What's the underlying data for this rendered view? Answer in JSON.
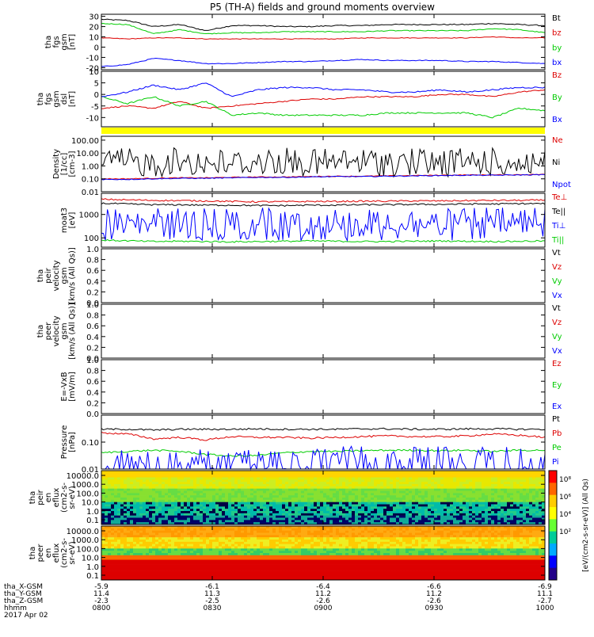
{
  "title": "P5 (TH-A) fields and ground moments overview",
  "colors": {
    "black": "#000000",
    "red": "#dd0000",
    "green": "#00cc00",
    "blue": "#0000ff",
    "yellow": "#ffff00",
    "spec_bg": "#ff3300"
  },
  "chart_data": [
    {
      "type": "line",
      "ylabel": [
        "tha",
        "fgs",
        "gsm",
        "[nT]"
      ],
      "ylim": [
        -22,
        32
      ],
      "yticks": [
        "30",
        "20",
        "10",
        "0",
        "-10",
        "-20"
      ],
      "ytick_values": [
        30,
        20,
        10,
        0,
        -10,
        -20
      ],
      "series": [
        {
          "name": "Bt",
          "color": "black",
          "noise": 0.5,
          "values": [
            27,
            26,
            20,
            22,
            16,
            21,
            21,
            20,
            20,
            21,
            21,
            22,
            22,
            22,
            22,
            23,
            22,
            21
          ]
        },
        {
          "name": "bz",
          "color": "red",
          "noise": 0.3,
          "values": [
            9,
            8,
            9,
            9,
            8,
            8,
            8,
            8,
            8,
            8,
            9,
            9,
            9,
            9,
            9,
            10,
            9,
            9
          ]
        },
        {
          "name": "by",
          "color": "green",
          "noise": 0.4,
          "values": [
            23,
            22,
            13,
            17,
            13,
            14,
            14,
            15,
            15,
            15,
            15,
            16,
            16,
            16,
            16,
            18,
            17,
            14
          ]
        },
        {
          "name": "bx",
          "color": "blue",
          "noise": 0.4,
          "values": [
            -19,
            -17,
            -11,
            -13,
            -16,
            -16,
            -15,
            -14,
            -14,
            -13,
            -12,
            -13,
            -13,
            -13,
            -14,
            -14,
            -15,
            -16
          ]
        }
      ]
    },
    {
      "type": "line",
      "ylabel": [
        "tha",
        "fgs",
        "gsm",
        "dsl",
        "[nT]"
      ],
      "ylim": [
        -14,
        10
      ],
      "yticks": [
        "10",
        "5",
        "0",
        "-5",
        "-10"
      ],
      "ytick_values": [
        10,
        5,
        0,
        -5,
        -10
      ],
      "series": [
        {
          "name": "Bz",
          "color": "red",
          "noise": 0.25,
          "values": [
            -6,
            -5,
            -6,
            -3,
            -6,
            -5,
            -4,
            -3,
            -2,
            -2,
            -1,
            -1,
            -1,
            0,
            0,
            -1,
            1,
            2
          ]
        },
        {
          "name": "By",
          "color": "green",
          "noise": 0.3,
          "values": [
            -1,
            -4,
            -1,
            -5,
            -3,
            -9,
            -8,
            -9,
            -9,
            -9,
            -9,
            -8,
            -8,
            -8,
            -8,
            -10,
            -6,
            -7
          ]
        },
        {
          "name": "Bx",
          "color": "blue",
          "noise": 0.3,
          "values": [
            -1,
            1,
            4,
            2,
            5,
            -1,
            2,
            3,
            3,
            2,
            2,
            1,
            1,
            2,
            1,
            2,
            3,
            3
          ]
        }
      ]
    },
    {
      "type": "line",
      "scale": "log",
      "ylabel": [
        "Density",
        "[1/cc]",
        "[cm-3]"
      ],
      "ylim": [
        0.01,
        200
      ],
      "yticks": [
        "100.00",
        "10.00",
        "1.00",
        "0.10",
        "0.01"
      ],
      "ytick_values": [
        100,
        10,
        1,
        0.1,
        0.01
      ],
      "series": [
        {
          "name": "Ne",
          "color": "red",
          "values": [
            0.1,
            0.1,
            0.11,
            0.12,
            0.12,
            0.13,
            0.14,
            0.14,
            0.15,
            0.16,
            0.16,
            0.17,
            0.18,
            0.19,
            0.2,
            0.2,
            0.21,
            0.22
          ]
        },
        {
          "name": "Ni",
          "color": "black",
          "spiky": true,
          "values": [
            20,
            25,
            18,
            30,
            22,
            20,
            25,
            28,
            20,
            24,
            26,
            22,
            25,
            20,
            28,
            24,
            22,
            26
          ]
        },
        {
          "name": "Npot",
          "color": "blue",
          "values": [
            0.09,
            0.09,
            0.1,
            0.11,
            0.11,
            0.12,
            0.13,
            0.13,
            0.14,
            0.15,
            0.15,
            0.16,
            0.17,
            0.18,
            0.19,
            0.19,
            0.2,
            0.21
          ]
        }
      ]
    },
    {
      "type": "line",
      "scale": "log",
      "ylabel": [
        "moat3",
        "[eV]"
      ],
      "ylim": [
        40,
        8000
      ],
      "yticks": [
        "1000",
        "100"
      ],
      "ytick_values": [
        1000,
        100
      ],
      "series": [
        {
          "name": "Te⊥",
          "color": "red",
          "values": [
            4500,
            4200,
            4000,
            3900,
            3800,
            3600,
            3500,
            3500,
            3600,
            3600,
            3700,
            3700,
            3800,
            3800,
            3900,
            4000,
            4000,
            4100
          ]
        },
        {
          "name": "Te||",
          "color": "black",
          "values": [
            3000,
            2800,
            2600,
            2600,
            2500,
            2500,
            2400,
            2400,
            2500,
            2500,
            2600,
            2600,
            2700,
            2700,
            2800,
            2800,
            2900,
            2900
          ]
        },
        {
          "name": "Ti⊥",
          "color": "blue",
          "spiky": true,
          "values": [
            2000,
            1800,
            1900,
            2000,
            1800,
            1900,
            2000,
            1800,
            1900,
            2000,
            1800,
            1900,
            2000,
            1800,
            1900,
            2000,
            1900,
            1900
          ]
        },
        {
          "name": "Ti||",
          "color": "green",
          "values": [
            80,
            75,
            70,
            72,
            70,
            68,
            70,
            72,
            74,
            72,
            70,
            70,
            72,
            74,
            72,
            70,
            72,
            74
          ]
        }
      ]
    },
    {
      "type": "line",
      "ylabel": [
        "tha",
        "peir",
        "velocity",
        "gsm",
        "[km/s (All Qs)]"
      ],
      "ylim": [
        0,
        1
      ],
      "yticks": [
        "1.0",
        "0.8",
        "0.6",
        "0.4",
        "0.2",
        "0.0"
      ],
      "ytick_values": [
        1,
        0.8,
        0.6,
        0.4,
        0.2,
        0
      ],
      "series": [
        {
          "name": "Vt",
          "color": "black",
          "values": []
        },
        {
          "name": "Vz",
          "color": "red",
          "values": []
        },
        {
          "name": "Vy",
          "color": "green",
          "values": []
        },
        {
          "name": "Vx",
          "color": "blue",
          "values": []
        }
      ]
    },
    {
      "type": "line",
      "ylabel": [
        "tha",
        "peer",
        "velocity",
        "gsm",
        "[km/s (All Qs)]"
      ],
      "ylim": [
        0,
        1
      ],
      "yticks": [
        "1.0",
        "0.8",
        "0.6",
        "0.4",
        "0.2",
        "0.0"
      ],
      "ytick_values": [
        1,
        0.8,
        0.6,
        0.4,
        0.2,
        0
      ],
      "series": [
        {
          "name": "Vt",
          "color": "black",
          "values": []
        },
        {
          "name": "Vz",
          "color": "red",
          "values": []
        },
        {
          "name": "Vy",
          "color": "green",
          "values": []
        },
        {
          "name": "Vx",
          "color": "blue",
          "values": []
        }
      ]
    },
    {
      "type": "line",
      "ylabel": [
        "E=-VxB",
        "[mV/m]"
      ],
      "ylim": [
        0,
        1
      ],
      "yticks": [
        "1.0",
        "0.8",
        "0.6",
        "0.4",
        "0.2",
        "0.0"
      ],
      "ytick_values": [
        1,
        0.8,
        0.6,
        0.4,
        0.2,
        0
      ],
      "series": [
        {
          "name": "Ez",
          "color": "red",
          "values": []
        },
        {
          "name": "Ey",
          "color": "green",
          "values": []
        },
        {
          "name": "Ex",
          "color": "blue",
          "values": []
        }
      ]
    },
    {
      "type": "line",
      "scale": "log",
      "ylabel": [
        "Pressure",
        "[nPa]"
      ],
      "ylim": [
        0.01,
        1
      ],
      "yticks": [
        "0.10",
        "0.01"
      ],
      "ytick_values": [
        0.1,
        0.01
      ],
      "series": [
        {
          "name": "Pt",
          "color": "black",
          "values": [
            0.3,
            0.3,
            0.28,
            0.3,
            0.3,
            0.3,
            0.31,
            0.3,
            0.3,
            0.3,
            0.31,
            0.31,
            0.3,
            0.3,
            0.31,
            0.31,
            0.3,
            0.3
          ]
        },
        {
          "name": "Pb",
          "color": "red",
          "values": [
            0.22,
            0.2,
            0.13,
            0.15,
            0.12,
            0.16,
            0.15,
            0.15,
            0.14,
            0.15,
            0.16,
            0.17,
            0.16,
            0.16,
            0.17,
            0.2,
            0.18,
            0.15
          ]
        },
        {
          "name": "Pe",
          "color": "green",
          "values": [
            0.04,
            0.045,
            0.05,
            0.045,
            0.035,
            0.03,
            0.032,
            0.04,
            0.045,
            0.045,
            0.048,
            0.05,
            0.05,
            0.048,
            0.05,
            0.045,
            0.05,
            0.05
          ]
        },
        {
          "name": "Pi",
          "color": "blue",
          "spiky": true,
          "values": [
            0.045,
            0.05,
            0.05,
            0.06,
            0.055,
            0.06,
            0.06,
            0.065,
            0.065,
            0.07,
            0.07,
            0.07,
            0.07,
            0.07,
            0.075,
            0.07,
            0.07,
            0.07
          ]
        }
      ]
    },
    {
      "type": "heatmap",
      "ylabel": [
        "tha",
        "peir",
        "en",
        "eflux",
        "(cm2-s-",
        "sr-eV)"
      ],
      "yticks": [
        "10000.0",
        "1000.0",
        "100.0",
        "10.0",
        "1.0",
        "0.1"
      ]
    },
    {
      "type": "heatmap",
      "ylabel": [
        "tha",
        "peer",
        "en",
        "eflux",
        "(cm2-s-",
        "sr-eV)"
      ],
      "yticks": [
        "10000.0",
        "1000.0",
        "100.0",
        "10.0",
        "1.0",
        "0.1"
      ]
    }
  ],
  "colorbar": {
    "label": "[eV/(cm2-s-sr-eV)] (All Qs)",
    "ticks": [
      "10⁸",
      "10⁶",
      "10⁴",
      "10²"
    ]
  },
  "strip": {
    "color": "yellow"
  },
  "xaxis": {
    "row_labels": [
      "tha_X-GSM",
      "tha_Y-GSM",
      "tha_Z-GSM",
      "hhmm",
      "2017 Apr 02"
    ],
    "columns": [
      [
        "-5.9",
        "11.4",
        "-2.3",
        "0800"
      ],
      [
        "-6.1",
        "11.3",
        "-2.5",
        "0830"
      ],
      [
        "-6.4",
        "11.2",
        "-2.6",
        "0900"
      ],
      [
        "-6.6",
        "11.2",
        "-2.6",
        "0930"
      ],
      [
        "-6.9",
        "11.1",
        "-2.7",
        "1000"
      ]
    ]
  }
}
